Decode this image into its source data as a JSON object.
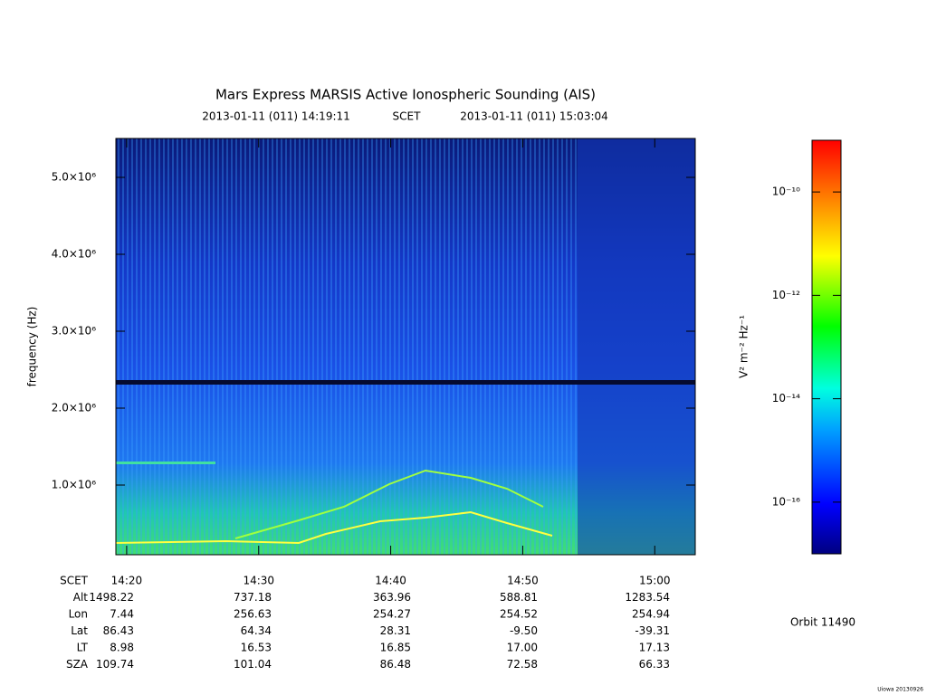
{
  "chart_data": {
    "type": "spectrogram",
    "title": "Mars Express MARSIS Active Ionospheric Sounding (AIS)",
    "subtitle_start": "2013-01-11 (011) 14:19:11",
    "subtitle_mid": "SCET",
    "subtitle_end": "2013-01-11 (011) 15:03:04",
    "y_label": "frequency (Hz)",
    "xlim": [
      859.183,
      903.067
    ],
    "xticks": [
      {
        "value": 860,
        "label": "14:20"
      },
      {
        "value": 870,
        "label": "14:30"
      },
      {
        "value": 880,
        "label": "14:40"
      },
      {
        "value": 890,
        "label": "14:50"
      },
      {
        "value": 900,
        "label": "15:00"
      }
    ],
    "ylim": [
      94000,
      5506000
    ],
    "yticks": [
      {
        "value": 1000000,
        "label": "1.0×10⁶"
      },
      {
        "value": 2000000,
        "label": "2.0×10⁶"
      },
      {
        "value": 3000000,
        "label": "3.0×10⁶"
      },
      {
        "value": 4000000,
        "label": "4.0×10⁶"
      },
      {
        "value": 5000000,
        "label": "5.0×10⁶"
      }
    ],
    "colorbar_label": "V² m⁻² Hz⁻¹",
    "colorbar_log": true,
    "clim": [
      1e-17,
      1e-09
    ],
    "cticks": [
      {
        "value": 1e-16,
        "label": "10⁻¹⁶"
      },
      {
        "value": 1e-14,
        "label": "10⁻¹⁴"
      },
      {
        "value": 1e-12,
        "label": "10⁻¹²"
      },
      {
        "value": 1e-10,
        "label": "10⁻¹⁰"
      }
    ],
    "ephemeris": {
      "row_labels": [
        "SCET",
        "Alt",
        "Lon",
        "Lat",
        "LT",
        "SZA"
      ],
      "rows": [
        [
          "1498.22",
          "737.18",
          "363.96",
          "588.81",
          "1283.54"
        ],
        [
          "7.44",
          "256.63",
          "254.27",
          "254.52",
          "254.94"
        ],
        [
          "86.43",
          "64.34",
          "28.31",
          "-9.50",
          "-39.31"
        ],
        [
          "8.98",
          "16.53",
          "16.85",
          "17.00",
          "17.13"
        ],
        [
          "109.74",
          "101.04",
          "86.48",
          "72.58",
          "66.33"
        ]
      ]
    },
    "orbit": "Orbit 11490",
    "footer": "Uiowa 20130926"
  }
}
